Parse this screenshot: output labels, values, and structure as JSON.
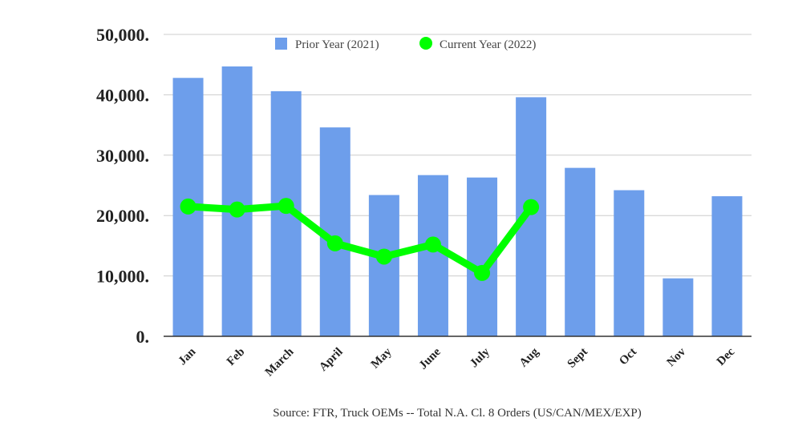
{
  "chart_data": {
    "type": "bar",
    "categories": [
      "Jan",
      "Feb",
      "March",
      "April",
      "May",
      "June",
      "July",
      "Aug",
      "Sept",
      "Oct",
      "Nov",
      "Dec"
    ],
    "series": [
      {
        "name": "Prior Year (2021)",
        "kind": "bar",
        "color": "#6d9eeb",
        "values": [
          42800,
          44700,
          40600,
          34600,
          23400,
          26700,
          26300,
          39600,
          27900,
          24200,
          9600,
          23200
        ]
      },
      {
        "name": "Current Year (2022)",
        "kind": "line",
        "color": "#00ff00",
        "values": [
          21500,
          21000,
          21600,
          15400,
          13200,
          15200,
          10500,
          21400,
          null,
          null,
          null,
          null
        ]
      }
    ],
    "ylim": [
      0,
      50000
    ],
    "yticks": [
      0,
      10000,
      20000,
      30000,
      40000,
      50000
    ],
    "ytick_labels": [
      "0.",
      "10,000.",
      "20,000.",
      "30,000.",
      "40,000.",
      "50,000."
    ],
    "grid": true,
    "legend_position": "top-center",
    "source_note": "Source: FTR, Truck OEMs -- Total N.A. Cl. 8 Orders (US/CAN/MEX/EXP)"
  }
}
